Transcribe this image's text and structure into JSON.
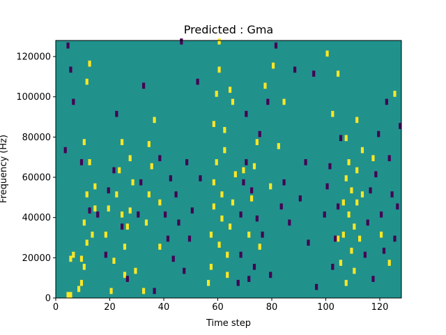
{
  "chart_data": {
    "type": "heatmap",
    "title": "Predicted : Gma",
    "xlabel": "Time step",
    "ylabel": "Frequency (Hz)",
    "xlim": [
      0,
      128
    ],
    "ylim": [
      0,
      128000
    ],
    "x_ticks": [
      0,
      20,
      40,
      60,
      80,
      100,
      120
    ],
    "y_ticks": [
      0,
      20000,
      40000,
      60000,
      80000,
      100000,
      120000
    ],
    "y_tick_labels": [
      "0",
      "20000",
      "40000",
      "60000",
      "80000",
      "100000",
      "120000"
    ],
    "grid": false,
    "legend": "none",
    "colors": {
      "background": "#21918c",
      "high": "#fde725",
      "low": "#440154"
    },
    "cells_high": [
      [
        4,
        0
      ],
      [
        5,
        0
      ],
      [
        5,
        18000
      ],
      [
        6,
        20000
      ],
      [
        8,
        3000
      ],
      [
        9,
        6000
      ],
      [
        9,
        18000
      ],
      [
        10,
        14000
      ],
      [
        11,
        26000
      ],
      [
        10,
        36000
      ],
      [
        11,
        50000
      ],
      [
        12,
        66000
      ],
      [
        10,
        76000
      ],
      [
        11,
        106000
      ],
      [
        12,
        115000
      ],
      [
        14,
        54000
      ],
      [
        13,
        30000
      ],
      [
        14,
        43000
      ],
      [
        18,
        30000
      ],
      [
        19,
        43000
      ],
      [
        20,
        2000
      ],
      [
        21,
        17000
      ],
      [
        22,
        50000
      ],
      [
        23,
        62000
      ],
      [
        24,
        40000
      ],
      [
        25,
        10000
      ],
      [
        25,
        24000
      ],
      [
        26,
        34000
      ],
      [
        27,
        42000
      ],
      [
        27,
        68000
      ],
      [
        24,
        76000
      ],
      [
        28,
        56000
      ],
      [
        29,
        12000
      ],
      [
        32,
        2000
      ],
      [
        33,
        36000
      ],
      [
        34,
        50000
      ],
      [
        34,
        75000
      ],
      [
        35,
        64000
      ],
      [
        36,
        87000
      ],
      [
        38,
        24000
      ],
      [
        38,
        46000
      ],
      [
        56,
        6000
      ],
      [
        57,
        14000
      ],
      [
        57,
        30000
      ],
      [
        58,
        44000
      ],
      [
        58,
        56000
      ],
      [
        59,
        66000
      ],
      [
        60,
        25000
      ],
      [
        61,
        38000
      ],
      [
        61,
        50000
      ],
      [
        62,
        72000
      ],
      [
        62,
        82000
      ],
      [
        63,
        10000
      ],
      [
        63,
        20000
      ],
      [
        64,
        34000
      ],
      [
        65,
        46000
      ],
      [
        66,
        60000
      ],
      [
        58,
        85000
      ],
      [
        59,
        100000
      ],
      [
        60,
        126000
      ],
      [
        60,
        112000
      ],
      [
        64,
        102000
      ],
      [
        65,
        96000
      ],
      [
        69,
        62000
      ],
      [
        71,
        30000
      ],
      [
        72,
        48000
      ],
      [
        73,
        64000
      ],
      [
        74,
        76000
      ],
      [
        75,
        24000
      ],
      [
        77,
        104000
      ],
      [
        79,
        54000
      ],
      [
        80,
        114000
      ],
      [
        82,
        74000
      ],
      [
        84,
        96000
      ],
      [
        105,
        16000
      ],
      [
        106,
        30000
      ],
      [
        106,
        46000
      ],
      [
        107,
        58000
      ],
      [
        107,
        6000
      ],
      [
        108,
        66000
      ],
      [
        108,
        40000
      ],
      [
        109,
        22000
      ],
      [
        109,
        52000
      ],
      [
        110,
        34000
      ],
      [
        110,
        12000
      ],
      [
        111,
        46000
      ],
      [
        111,
        62000
      ],
      [
        112,
        28000
      ],
      [
        113,
        50000
      ],
      [
        113,
        72000
      ],
      [
        107,
        78000
      ],
      [
        104,
        28000
      ],
      [
        102,
        90000
      ],
      [
        100,
        120000
      ],
      [
        104,
        110000
      ],
      [
        111,
        87000
      ],
      [
        117,
        68000
      ],
      [
        120,
        30000
      ],
      [
        123,
        16000
      ],
      [
        125,
        100000
      ]
    ],
    "cells_low": [
      [
        3,
        72000
      ],
      [
        4,
        124000
      ],
      [
        5,
        112000
      ],
      [
        6,
        96000
      ],
      [
        9,
        66000
      ],
      [
        12,
        42000
      ],
      [
        15,
        40000
      ],
      [
        18,
        20000
      ],
      [
        19,
        52000
      ],
      [
        21,
        62000
      ],
      [
        22,
        90000
      ],
      [
        24,
        34000
      ],
      [
        26,
        8000
      ],
      [
        30,
        40000
      ],
      [
        31,
        56000
      ],
      [
        32,
        104000
      ],
      [
        36,
        2000
      ],
      [
        38,
        68000
      ],
      [
        40,
        40000
      ],
      [
        41,
        28000
      ],
      [
        42,
        58000
      ],
      [
        43,
        18000
      ],
      [
        44,
        50000
      ],
      [
        45,
        36000
      ],
      [
        46,
        126000
      ],
      [
        47,
        12000
      ],
      [
        48,
        66000
      ],
      [
        49,
        28000
      ],
      [
        50,
        42000
      ],
      [
        52,
        106000
      ],
      [
        53,
        58000
      ],
      [
        67,
        6000
      ],
      [
        68,
        20000
      ],
      [
        68,
        40000
      ],
      [
        69,
        56000
      ],
      [
        70,
        66000
      ],
      [
        70,
        90000
      ],
      [
        71,
        8000
      ],
      [
        72,
        52000
      ],
      [
        73,
        14000
      ],
      [
        74,
        38000
      ],
      [
        75,
        80000
      ],
      [
        76,
        30000
      ],
      [
        78,
        96000
      ],
      [
        79,
        10000
      ],
      [
        81,
        124000
      ],
      [
        83,
        44000
      ],
      [
        84,
        56000
      ],
      [
        86,
        36000
      ],
      [
        88,
        112000
      ],
      [
        90,
        48000
      ],
      [
        92,
        66000
      ],
      [
        93,
        26000
      ],
      [
        95,
        110000
      ],
      [
        96,
        4000
      ],
      [
        99,
        40000
      ],
      [
        100,
        54000
      ],
      [
        101,
        64000
      ],
      [
        102,
        14000
      ],
      [
        103,
        28000
      ],
      [
        104,
        44000
      ],
      [
        105,
        78000
      ],
      [
        114,
        20000
      ],
      [
        115,
        36000
      ],
      [
        116,
        52000
      ],
      [
        117,
        8000
      ],
      [
        118,
        60000
      ],
      [
        119,
        80000
      ],
      [
        120,
        40000
      ],
      [
        121,
        22000
      ],
      [
        122,
        96000
      ],
      [
        123,
        68000
      ],
      [
        124,
        50000
      ],
      [
        125,
        28000
      ],
      [
        126,
        44000
      ],
      [
        127,
        84000
      ]
    ]
  }
}
